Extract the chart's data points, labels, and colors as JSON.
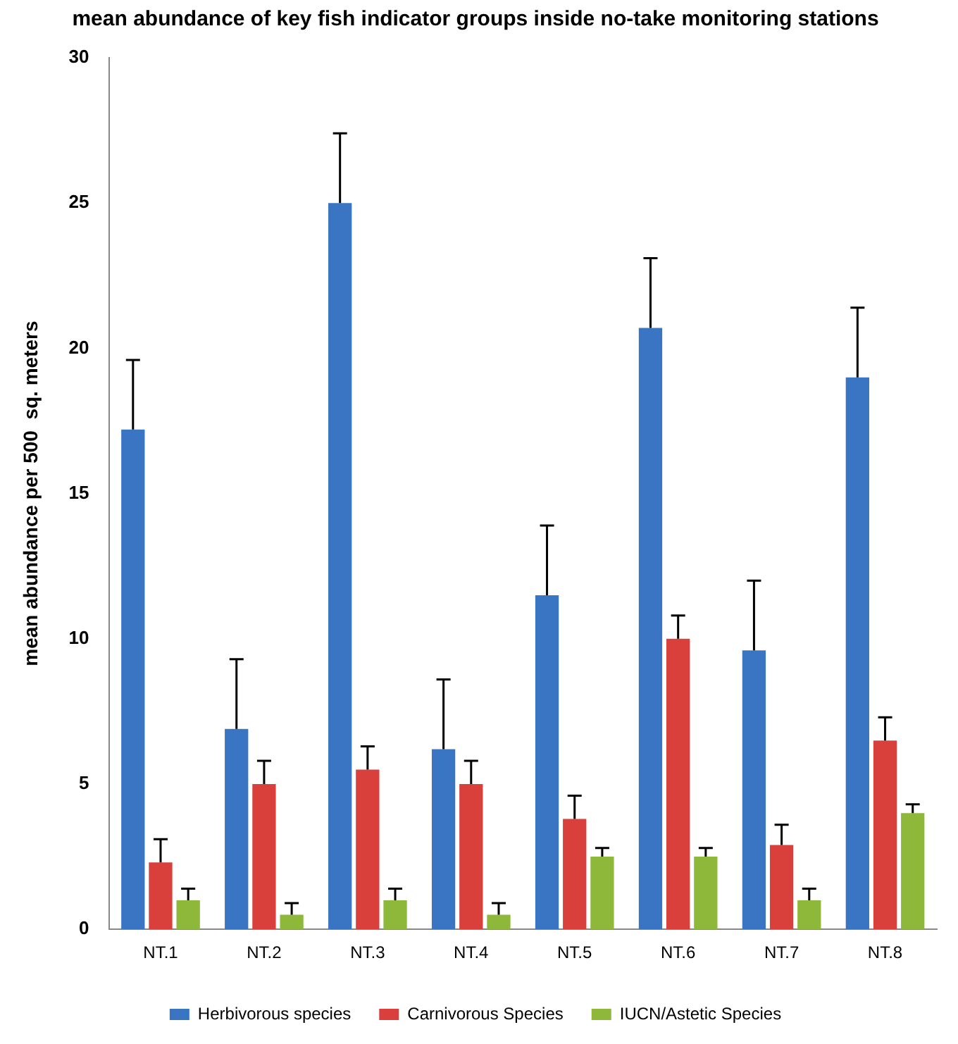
{
  "chart_data": {
    "type": "bar",
    "title": "mean abundance of key fish indicator groups inside no-take monitoring stations",
    "ylabel": "mean abundance per 500  sq. meters",
    "categories": [
      "NT.1",
      "NT.2",
      "NT.3",
      "NT.4",
      "NT.5",
      "NT.6",
      "NT.7",
      "NT.8"
    ],
    "series": [
      {
        "name": "Herbivorous species",
        "color": "#3a75c4",
        "values": [
          17.2,
          6.9,
          25,
          6.2,
          11.5,
          20.7,
          9.6,
          19
        ],
        "errors": [
          [
            17.2,
            19.6
          ],
          [
            6.9,
            9.3
          ],
          [
            25,
            27.4
          ],
          [
            6.2,
            8.6
          ],
          [
            11.5,
            13.9
          ],
          [
            20.7,
            23.1
          ],
          [
            9.6,
            12
          ],
          [
            19,
            21.4
          ]
        ]
      },
      {
        "name": "Carnivorous Species",
        "color": "#d9403b",
        "values": [
          2.3,
          5,
          5.5,
          5,
          3.8,
          10,
          2.9,
          6.5
        ],
        "errors": [
          [
            2.3,
            3.1
          ],
          [
            5,
            5.8
          ],
          [
            5.5,
            6.3
          ],
          [
            5,
            5.8
          ],
          [
            3.8,
            4.6
          ],
          [
            10,
            10.8
          ],
          [
            2.9,
            3.6
          ],
          [
            6.5,
            7.3
          ]
        ]
      },
      {
        "name": "IUCN/Astetic Species",
        "color": "#8db83a",
        "values": [
          1,
          0.5,
          1,
          0.5,
          2.5,
          2.5,
          1,
          4
        ],
        "errors": [
          [
            1,
            1.4
          ],
          [
            0.5,
            0.9
          ],
          [
            1,
            1.4
          ],
          [
            0.5,
            0.9
          ],
          [
            2.5,
            2.8
          ],
          [
            2.5,
            2.8
          ],
          [
            1,
            1.4
          ],
          [
            4,
            4.3
          ]
        ]
      }
    ],
    "ylim": [
      0,
      30
    ],
    "yticks": [
      0,
      5,
      10,
      15,
      20,
      25,
      30
    ],
    "grid": false,
    "legend": "bottom"
  }
}
